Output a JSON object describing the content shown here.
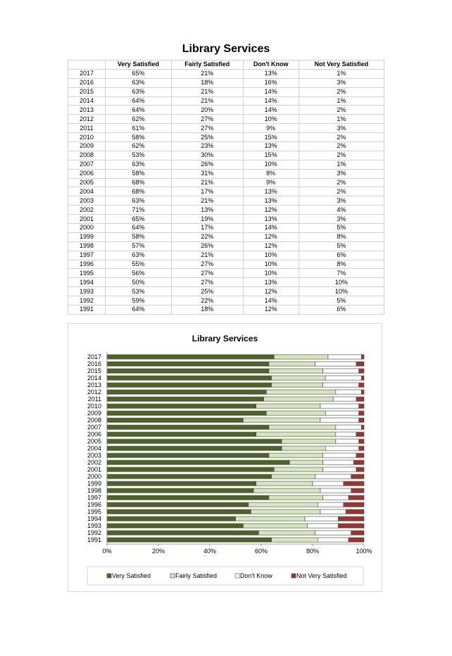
{
  "page": {
    "title": "Library Services"
  },
  "table": {
    "headers": [
      "",
      "Very Satisfied",
      "Fairly Satisfied",
      "Don't Know",
      "Not Very Satisfied"
    ],
    "rows": [
      [
        "2017",
        "65%",
        "21%",
        "13%",
        "1%"
      ],
      [
        "2016",
        "63%",
        "18%",
        "16%",
        "3%"
      ],
      [
        "2015",
        "63%",
        "21%",
        "14%",
        "2%"
      ],
      [
        "2014",
        "64%",
        "21%",
        "14%",
        "1%"
      ],
      [
        "2013",
        "64%",
        "20%",
        "14%",
        "2%"
      ],
      [
        "2012",
        "62%",
        "27%",
        "10%",
        "1%"
      ],
      [
        "2011",
        "61%",
        "27%",
        "9%",
        "3%"
      ],
      [
        "2010",
        "58%",
        "25%",
        "15%",
        "2%"
      ],
      [
        "2009",
        "62%",
        "23%",
        "13%",
        "2%"
      ],
      [
        "2008",
        "53%",
        "30%",
        "15%",
        "2%"
      ],
      [
        "2007",
        "63%",
        "26%",
        "10%",
        "1%"
      ],
      [
        "2006",
        "58%",
        "31%",
        "8%",
        "3%"
      ],
      [
        "2005",
        "68%",
        "21%",
        "9%",
        "2%"
      ],
      [
        "2004",
        "68%",
        "17%",
        "13%",
        "2%"
      ],
      [
        "2003",
        "63%",
        "21%",
        "13%",
        "3%"
      ],
      [
        "2002",
        "71%",
        "13%",
        "12%",
        "4%"
      ],
      [
        "2001",
        "65%",
        "19%",
        "13%",
        "3%"
      ],
      [
        "2000",
        "64%",
        "17%",
        "14%",
        "5%"
      ],
      [
        "1999",
        "58%",
        "22%",
        "12%",
        "8%"
      ],
      [
        "1998",
        "57%",
        "26%",
        "12%",
        "5%"
      ],
      [
        "1997",
        "63%",
        "21%",
        "10%",
        "6%"
      ],
      [
        "1996",
        "55%",
        "27%",
        "10%",
        "8%"
      ],
      [
        "1995",
        "56%",
        "27%",
        "10%",
        "7%"
      ],
      [
        "1994",
        "50%",
        "27%",
        "13%",
        "10%"
      ],
      [
        "1993",
        "53%",
        "25%",
        "12%",
        "10%"
      ],
      [
        "1992",
        "59%",
        "22%",
        "14%",
        "5%"
      ],
      [
        "1991",
        "64%",
        "18%",
        "12%",
        "6%"
      ]
    ]
  },
  "chart_data": {
    "type": "bar",
    "orientation": "horizontal",
    "stacked": "percent",
    "title": "Library Services",
    "categories": [
      "2017",
      "2016",
      "2015",
      "2014",
      "2013",
      "2012",
      "2011",
      "2010",
      "2009",
      "2008",
      "2007",
      "2006",
      "2005",
      "2004",
      "2003",
      "2002",
      "2001",
      "2000",
      "1999",
      "1998",
      "1997",
      "1996",
      "1995",
      "1994",
      "1993",
      "1992",
      "1991"
    ],
    "series": [
      {
        "name": "Very Satisfied",
        "color": "#4f6228",
        "values": [
          65,
          63,
          63,
          64,
          64,
          62,
          61,
          58,
          62,
          53,
          63,
          58,
          68,
          68,
          63,
          71,
          65,
          64,
          58,
          57,
          63,
          55,
          56,
          50,
          53,
          59,
          64
        ]
      },
      {
        "name": "Fairly Satisfied",
        "color": "#d7e4bc",
        "values": [
          21,
          18,
          21,
          21,
          20,
          27,
          27,
          25,
          23,
          30,
          26,
          31,
          21,
          17,
          21,
          13,
          19,
          17,
          22,
          26,
          21,
          27,
          27,
          27,
          25,
          22,
          18
        ]
      },
      {
        "name": "Don't Know",
        "color": "#ffffff",
        "values": [
          13,
          16,
          14,
          14,
          14,
          10,
          9,
          15,
          13,
          15,
          10,
          8,
          9,
          13,
          13,
          12,
          13,
          14,
          12,
          12,
          10,
          10,
          10,
          13,
          12,
          14,
          12
        ]
      },
      {
        "name": "Not Very Satisfied",
        "color": "#953735",
        "values": [
          1,
          3,
          2,
          1,
          2,
          1,
          3,
          2,
          2,
          2,
          1,
          3,
          2,
          2,
          3,
          4,
          3,
          5,
          8,
          5,
          6,
          8,
          7,
          10,
          10,
          5,
          6
        ]
      }
    ],
    "x_ticks": [
      "0%",
      "20%",
      "40%",
      "60%",
      "80%",
      "100%"
    ],
    "xlim": [
      0,
      100
    ],
    "grid": false,
    "legend": "bottom"
  }
}
